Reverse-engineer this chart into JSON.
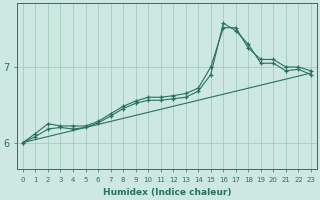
{
  "xlabel": "Humidex (Indice chaleur)",
  "bg_color": "#cce8e0",
  "grid_color": "#9ec8ba",
  "line_color": "#2a7060",
  "xlim": [
    -0.5,
    23.5
  ],
  "ylim": [
    5.65,
    7.85
  ],
  "xticks": [
    0,
    1,
    2,
    3,
    4,
    5,
    6,
    7,
    8,
    9,
    10,
    11,
    12,
    13,
    14,
    15,
    16,
    17,
    18,
    19,
    20,
    21,
    22,
    23
  ],
  "yticks": [
    6,
    7
  ],
  "series1_x": [
    0,
    1,
    2,
    3,
    4,
    5,
    6,
    7,
    8,
    9,
    10,
    11,
    12,
    13,
    14,
    15,
    16,
    17,
    18,
    19,
    20,
    21,
    22,
    23
  ],
  "series1_y": [
    6.0,
    6.12,
    6.25,
    6.22,
    6.22,
    6.22,
    6.28,
    6.38,
    6.48,
    6.55,
    6.6,
    6.6,
    6.62,
    6.65,
    6.72,
    7.0,
    7.52,
    7.52,
    7.25,
    7.1,
    7.1,
    7.0,
    7.0,
    6.95
  ],
  "series2_x": [
    0,
    1,
    2,
    3,
    4,
    5,
    6,
    7,
    8,
    9,
    10,
    11,
    12,
    13,
    14,
    15,
    16,
    17,
    18,
    19,
    20,
    21,
    22,
    23
  ],
  "series2_y": [
    6.0,
    6.08,
    6.18,
    6.2,
    6.18,
    6.2,
    6.26,
    6.35,
    6.45,
    6.52,
    6.56,
    6.56,
    6.58,
    6.6,
    6.68,
    6.9,
    7.58,
    7.48,
    7.3,
    7.05,
    7.05,
    6.95,
    6.97,
    6.9
  ],
  "series3_x": [
    0,
    23
  ],
  "series3_y": [
    6.0,
    6.92
  ]
}
